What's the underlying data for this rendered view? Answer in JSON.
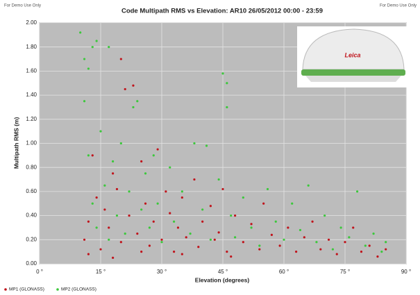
{
  "chart_data": {
    "type": "scatter",
    "title": "Code Multipath RMS vs Elevation: AR10 26/05/2012 00:00 - 23:59",
    "annotations": [
      "For Demo Use Only",
      "For Demo Use Only"
    ],
    "x_label": "Elevation (degrees)",
    "y_label": "Multipath RMS (m)",
    "xlim": [
      0,
      90
    ],
    "ylim": [
      0,
      2
    ],
    "xticks": [
      {
        "value": 0,
        "label": "0 °"
      },
      {
        "value": 15,
        "label": "15 °"
      },
      {
        "value": 30,
        "label": "30 °"
      },
      {
        "value": 45,
        "label": "45 °"
      },
      {
        "value": 60,
        "label": "60 °"
      },
      {
        "value": 75,
        "label": "75 °"
      },
      {
        "value": 90,
        "label": "90 °"
      }
    ],
    "yticks": [
      {
        "value": 0,
        "label": "0.00"
      },
      {
        "value": 0.2,
        "label": "0.20"
      },
      {
        "value": 0.4,
        "label": "0.40"
      },
      {
        "value": 0.6,
        "label": "0.60"
      },
      {
        "value": 0.8,
        "label": "0.80"
      },
      {
        "value": 1,
        "label": "1.00"
      },
      {
        "value": 1.2,
        "label": "1.20"
      },
      {
        "value": 1.4,
        "label": "1.40"
      },
      {
        "value": 1.6,
        "label": "1.60"
      },
      {
        "value": 1.8,
        "label": "1.80"
      },
      {
        "value": 2,
        "label": "2.00"
      }
    ],
    "grid": true,
    "legend": "bottom-left",
    "series": [
      {
        "name": "MP1 (GLONASS)",
        "color": "#c0141c",
        "x": [
          11,
          12,
          13,
          14,
          15,
          16,
          17,
          18,
          19,
          20,
          20,
          21,
          22,
          23,
          24,
          25,
          26,
          27,
          28,
          29,
          30,
          31,
          32,
          33,
          34,
          35,
          36,
          38,
          39,
          40,
          42,
          43,
          44,
          45,
          46,
          48,
          50,
          52,
          54,
          55,
          57,
          59,
          61,
          63,
          65,
          67,
          69,
          71,
          73,
          75,
          77,
          79,
          81,
          83,
          85,
          12,
          18,
          25,
          35,
          47
        ],
        "values": [
          0.2,
          0.35,
          0.9,
          0.55,
          0.12,
          0.45,
          0.3,
          0.75,
          0.62,
          1.7,
          0.18,
          1.45,
          0.4,
          1.48,
          0.25,
          0.85,
          0.5,
          0.15,
          0.35,
          0.95,
          0.2,
          0.6,
          0.42,
          0.1,
          0.3,
          0.55,
          0.22,
          0.7,
          0.14,
          0.35,
          0.48,
          0.2,
          0.26,
          0.62,
          0.1,
          0.4,
          0.18,
          0.33,
          0.12,
          0.5,
          0.24,
          0.15,
          0.3,
          0.1,
          0.22,
          0.35,
          0.12,
          0.2,
          0.08,
          0.18,
          0.3,
          0.1,
          0.15,
          0.06,
          0.12,
          0.08,
          0.05,
          0.1,
          0.08,
          0.06
        ]
      },
      {
        "name": "MP2 (GLONASS)",
        "color": "#3cc83c",
        "x": [
          10,
          11,
          11,
          12,
          12,
          13,
          13,
          14,
          14,
          15,
          16,
          17,
          17,
          18,
          19,
          20,
          21,
          22,
          23,
          24,
          25,
          26,
          27,
          28,
          29,
          30,
          32,
          33,
          35,
          37,
          38,
          40,
          41,
          42,
          44,
          45,
          46,
          46,
          47,
          48,
          50,
          52,
          54,
          56,
          58,
          60,
          62,
          64,
          66,
          68,
          70,
          72,
          74,
          76,
          78,
          80,
          82,
          84,
          85
        ],
        "values": [
          1.92,
          1.35,
          1.7,
          1.62,
          0.9,
          1.8,
          0.5,
          1.85,
          0.3,
          1.1,
          0.65,
          1.8,
          0.2,
          0.85,
          0.4,
          1.0,
          0.25,
          0.6,
          1.3,
          1.35,
          0.45,
          0.75,
          0.3,
          0.9,
          0.5,
          0.18,
          0.8,
          0.35,
          0.6,
          0.25,
          1.0,
          0.45,
          0.98,
          0.2,
          0.7,
          1.58,
          1.5,
          1.3,
          0.4,
          0.22,
          0.55,
          0.3,
          0.15,
          0.62,
          0.35,
          0.2,
          0.5,
          0.28,
          0.65,
          0.18,
          0.4,
          0.12,
          0.3,
          0.22,
          0.6,
          0.15,
          0.25,
          0.1,
          0.18
        ]
      }
    ]
  }
}
